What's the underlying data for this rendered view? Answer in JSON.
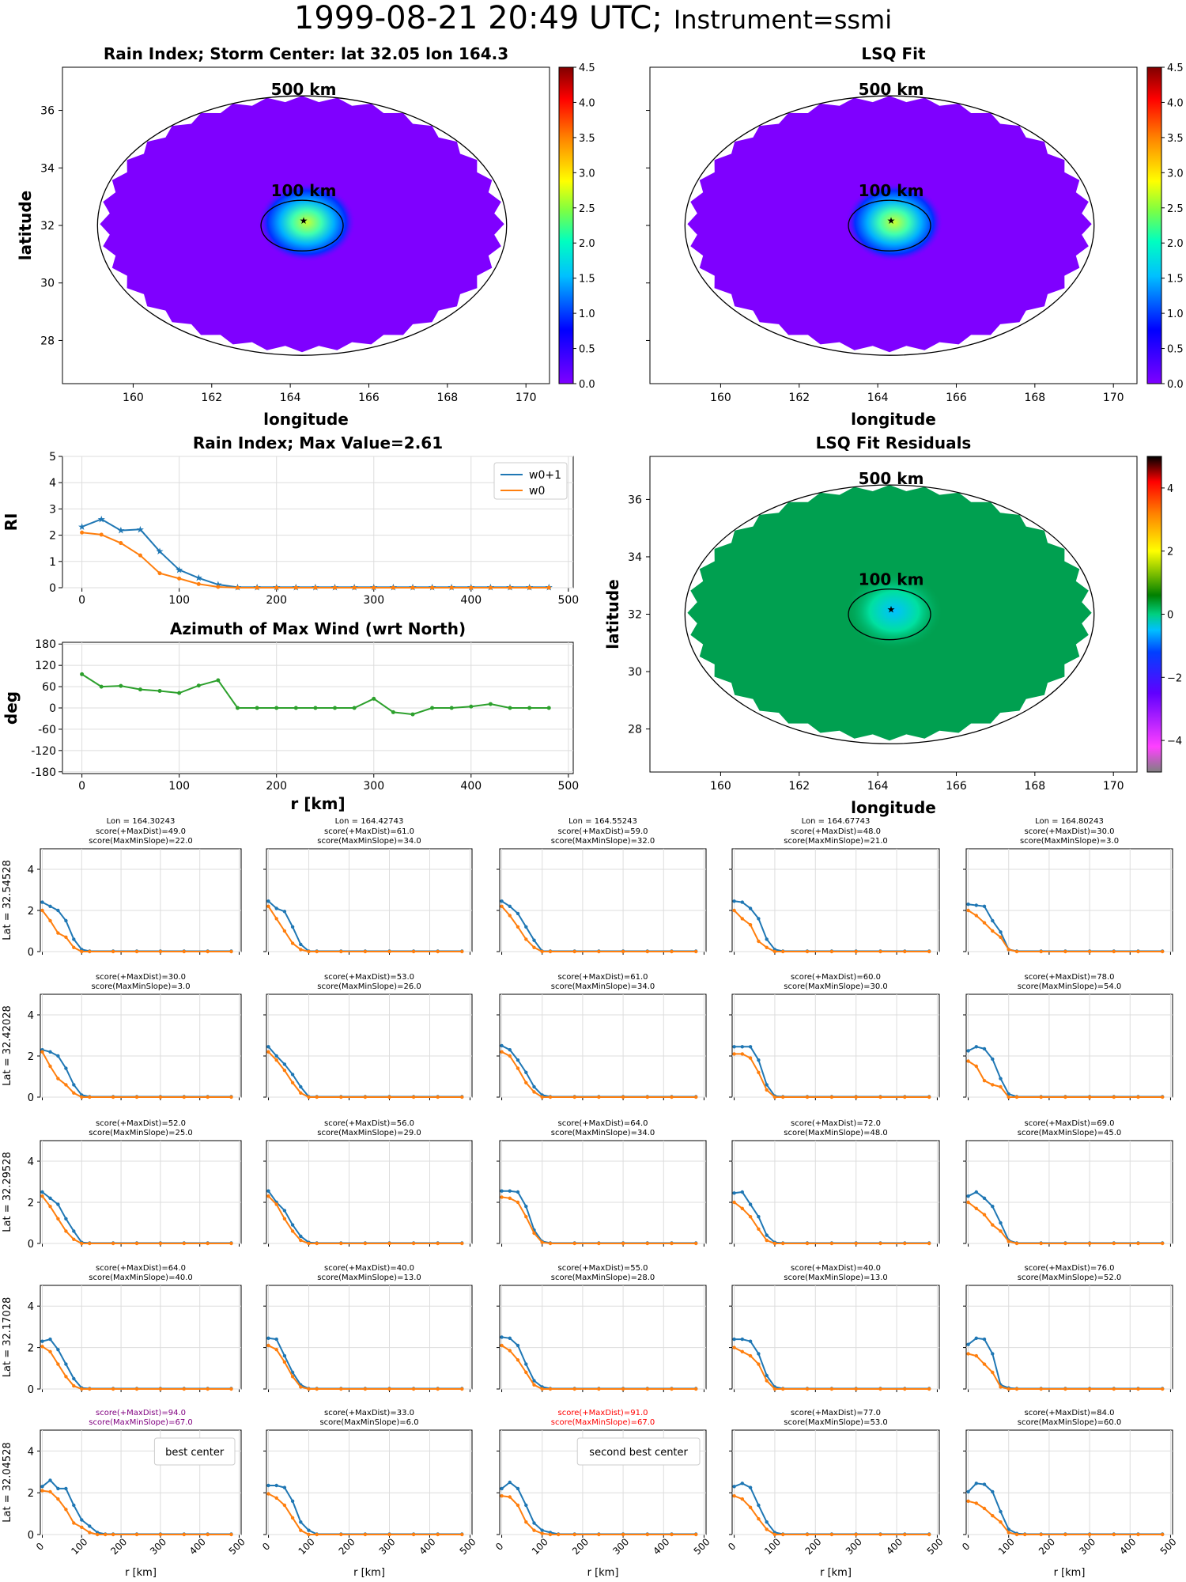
{
  "title": {
    "date": "1999-08-21 20:49 UTC;",
    "instrument": "Instrument=ssmi"
  },
  "colors": {
    "w0p1": "#1f77b4",
    "w0": "#ff7f0e",
    "azimuth": "#2ca02c",
    "purple": "#800080",
    "red": "#ff0000",
    "field_bg": "#7f00ff",
    "resid_bg": "#00a050"
  },
  "chart_data": [
    {
      "id": "rain_map",
      "type": "heatmap",
      "title": "Rain Index; Storm Center: lat 32.05 lon 164.3",
      "xlabel": "longitude",
      "ylabel": "latitude",
      "xlim": [
        158.2,
        170.6
      ],
      "ylim": [
        26.5,
        37.5
      ],
      "xticks": [
        "160",
        "162",
        "164",
        "166",
        "168",
        "170"
      ],
      "yticks": [
        "28",
        "30",
        "32",
        "34",
        "36"
      ],
      "center": [
        164.3,
        32.05
      ],
      "ring_labels": [
        "500 km",
        "100 km"
      ],
      "colorbar": {
        "min": 0.0,
        "max": 4.5,
        "ticks": [
          "0.0",
          "0.5",
          "1.0",
          "1.5",
          "2.0",
          "2.5",
          "3.0",
          "3.5",
          "4.0",
          "4.5"
        ],
        "cmap": "rainbow"
      },
      "peak": 2.61
    },
    {
      "id": "lsq_map",
      "type": "heatmap",
      "title": "LSQ Fit",
      "xlabel": "longitude",
      "ylabel": "",
      "xlim": [
        158.2,
        170.6
      ],
      "ylim": [
        26.5,
        37.5
      ],
      "xticks": [
        "160",
        "162",
        "164",
        "166",
        "168",
        "170"
      ],
      "yticks": [
        "28",
        "30",
        "32",
        "34",
        "36"
      ],
      "center": [
        164.3,
        32.05
      ],
      "ring_labels": [
        "500 km",
        "100 km"
      ],
      "colorbar": {
        "min": 0.0,
        "max": 4.5,
        "ticks": [
          "0.0",
          "0.5",
          "1.0",
          "1.5",
          "2.0",
          "2.5",
          "3.0",
          "3.5",
          "4.0",
          "4.5"
        ],
        "cmap": "rainbow"
      },
      "peak": 2.4
    },
    {
      "id": "resid_map",
      "type": "heatmap",
      "title": "LSQ Fit Residuals",
      "xlabel": "longitude",
      "ylabel": "latitude",
      "xlim": [
        158.2,
        170.6
      ],
      "ylim": [
        26.5,
        37.5
      ],
      "xticks": [
        "160",
        "162",
        "164",
        "166",
        "168",
        "170"
      ],
      "yticks": [
        "28",
        "30",
        "32",
        "34",
        "36"
      ],
      "center": [
        164.3,
        32.05
      ],
      "ring_labels": [
        "500 km",
        "100 km"
      ],
      "colorbar": {
        "min": -5,
        "max": 5,
        "ticks": [
          "−4",
          "−2",
          "0",
          "2",
          "4"
        ],
        "cmap": "diverging"
      }
    },
    {
      "id": "ri_profile",
      "type": "line",
      "title": "Rain Index; Max Value=2.61",
      "xlabel": "",
      "ylabel": "RI",
      "xlim": [
        -20,
        505
      ],
      "ylim": [
        0,
        5
      ],
      "xticks": [
        0,
        100,
        200,
        300,
        400,
        500
      ],
      "yticks": [
        0,
        1,
        2,
        3,
        4,
        5
      ],
      "x": [
        0,
        20,
        40,
        60,
        80,
        100,
        120,
        140,
        160,
        180,
        200,
        220,
        240,
        260,
        280,
        300,
        320,
        340,
        360,
        380,
        400,
        420,
        440,
        460,
        480
      ],
      "series": [
        {
          "name": "w0+1",
          "values": [
            2.32,
            2.61,
            2.18,
            2.22,
            1.38,
            0.68,
            0.37,
            0.12,
            0.02,
            0.02,
            0.02,
            0.02,
            0.02,
            0.02,
            0.02,
            0.02,
            0.02,
            0.02,
            0.02,
            0.02,
            0.02,
            0.02,
            0.02,
            0.02,
            0.02
          ]
        },
        {
          "name": "w0",
          "values": [
            2.1,
            2.02,
            1.7,
            1.23,
            0.55,
            0.35,
            0.14,
            0.03,
            0.0,
            0.0,
            0.0,
            0.0,
            0.0,
            0.0,
            0.0,
            0.0,
            0.0,
            0.0,
            0.0,
            0.0,
            0.0,
            0.0,
            0.0,
            0.0,
            0.0
          ]
        }
      ],
      "legend": "top-right"
    },
    {
      "id": "azimuth",
      "type": "line",
      "title": "Azimuth of Max Wind (wrt North)",
      "xlabel": "r [km]",
      "ylabel": "deg",
      "xlim": [
        -20,
        505
      ],
      "ylim": [
        -185,
        185
      ],
      "xticks": [
        0,
        100,
        200,
        300,
        400,
        500
      ],
      "yticks": [
        -180,
        -120,
        -60,
        0,
        60,
        120,
        180
      ],
      "x": [
        0,
        20,
        40,
        60,
        80,
        100,
        120,
        140,
        160,
        180,
        200,
        220,
        240,
        260,
        280,
        300,
        320,
        340,
        360,
        380,
        400,
        420,
        440,
        460,
        480
      ],
      "values": [
        95,
        60,
        62,
        52,
        48,
        42,
        63,
        78,
        0,
        0,
        0,
        0,
        0,
        0,
        0,
        26,
        -12,
        -18,
        0,
        0,
        4,
        11,
        0,
        0,
        0
      ]
    },
    {
      "id": "grid",
      "type": "line",
      "xlabel": "r [km]",
      "xlim": [
        -5,
        505
      ],
      "ylim": [
        0,
        5
      ],
      "xticks": [
        0,
        100,
        200,
        300,
        400,
        500
      ],
      "yticks": [
        0,
        2,
        4
      ],
      "x": [
        0,
        20,
        40,
        60,
        80,
        100,
        120,
        140,
        160,
        180,
        200,
        220,
        240,
        260,
        280,
        300,
        320,
        340,
        360,
        380,
        400,
        420,
        440,
        460,
        480
      ],
      "col_titles": [
        "Lon = 164.30243",
        "Lon = 164.42743",
        "Lon = 164.55243",
        "Lon = 164.67743",
        "Lon = 164.80243"
      ],
      "row_labels": [
        "Lat = 32.54528",
        "Lat = 32.42028",
        "Lat = 32.29528",
        "Lat = 32.17028",
        "Lat = 32.04528"
      ],
      "cells": [
        [
          {
            "s1": "score(+MaxDist)=49.0",
            "s2": "score(MaxMinSlope)=22.0",
            "a": [
              2.4,
              2.2,
              2.0,
              1.5,
              0.6,
              0.1,
              0.02
            ],
            "b": [
              2.0,
              1.5,
              0.9,
              0.7,
              0.2,
              0.0,
              0.0
            ]
          },
          {
            "s1": "score(+MaxDist)=61.0",
            "s2": "score(MaxMinSlope)=34.0",
            "a": [
              2.45,
              2.1,
              1.95,
              1.2,
              0.35,
              0.02,
              0.02
            ],
            "b": [
              2.2,
              1.6,
              1.0,
              0.4,
              0.1,
              0.0,
              0.0
            ]
          },
          {
            "s1": "score(+MaxDist)=59.0",
            "s2": "score(MaxMinSlope)=32.0",
            "a": [
              2.45,
              2.2,
              1.85,
              1.2,
              0.55,
              0.02,
              0.02
            ],
            "b": [
              2.2,
              1.75,
              1.2,
              0.6,
              0.2,
              0.0,
              0.0
            ]
          },
          {
            "s1": "score(+MaxDist)=48.0",
            "s2": "score(MaxMinSlope)=21.0",
            "a": [
              2.45,
              2.4,
              2.1,
              1.6,
              0.6,
              0.1,
              0.02
            ],
            "b": [
              2.0,
              1.6,
              1.3,
              0.5,
              0.2,
              0.0,
              0.0
            ]
          },
          {
            "s1": "score(+MaxDist)=30.0",
            "s2": "score(MaxMinSlope)=3.0",
            "a": [
              2.3,
              2.25,
              2.2,
              1.5,
              0.95,
              0.1,
              0.02
            ],
            "b": [
              2.0,
              1.75,
              1.4,
              1.0,
              0.7,
              0.1,
              0.0
            ]
          }
        ],
        [
          {
            "s1": "score(+MaxDist)=30.0",
            "s2": "score(MaxMinSlope)=3.0",
            "a": [
              2.3,
              2.2,
              2.0,
              1.4,
              0.6,
              0.1,
              0.02
            ],
            "b": [
              2.2,
              1.5,
              0.9,
              0.6,
              0.2,
              0.0,
              0.0
            ]
          },
          {
            "s1": "score(+MaxDist)=53.0",
            "s2": "score(MaxMinSlope)=26.0",
            "a": [
              2.45,
              2.0,
              1.6,
              1.1,
              0.5,
              0.02,
              0.02
            ],
            "b": [
              2.2,
              1.8,
              1.3,
              0.7,
              0.2,
              0.0,
              0.0
            ]
          },
          {
            "s1": "score(+MaxDist)=61.0",
            "s2": "score(MaxMinSlope)=34.0",
            "a": [
              2.5,
              2.3,
              1.8,
              1.2,
              0.5,
              0.1,
              0.02
            ],
            "b": [
              2.2,
              2.0,
              1.4,
              0.7,
              0.25,
              0.0,
              0.0
            ]
          },
          {
            "s1": "score(+MaxDist)=60.0",
            "s2": "score(MaxMinSlope)=30.0",
            "a": [
              2.45,
              2.45,
              2.45,
              1.8,
              0.6,
              0.05,
              0.02
            ],
            "b": [
              2.1,
              2.1,
              1.9,
              1.2,
              0.35,
              0.0,
              0.0
            ]
          },
          {
            "s1": "score(+MaxDist)=78.0",
            "s2": "score(MaxMinSlope)=54.0",
            "a": [
              2.25,
              2.45,
              2.35,
              1.85,
              0.9,
              0.15,
              0.02
            ],
            "b": [
              1.75,
              1.5,
              0.8,
              0.6,
              0.5,
              0.0,
              0.0
            ]
          }
        ],
        [
          {
            "s1": "score(+MaxDist)=52.0",
            "s2": "score(MaxMinSlope)=25.0",
            "a": [
              2.5,
              2.2,
              1.9,
              1.2,
              0.6,
              0.05,
              0.02
            ],
            "b": [
              2.3,
              1.8,
              1.2,
              0.6,
              0.2,
              0.0,
              0.0
            ]
          },
          {
            "s1": "score(+MaxDist)=56.0",
            "s2": "score(MaxMinSlope)=29.0",
            "a": [
              2.55,
              2.0,
              1.6,
              0.9,
              0.35,
              0.05,
              0.02
            ],
            "b": [
              2.3,
              1.9,
              1.2,
              0.6,
              0.15,
              0.0,
              0.0
            ]
          },
          {
            "s1": "score(+MaxDist)=64.0",
            "s2": "score(MaxMinSlope)=34.0",
            "a": [
              2.55,
              2.55,
              2.5,
              1.8,
              0.65,
              0.1,
              0.02
            ],
            "b": [
              2.25,
              2.2,
              2.0,
              1.3,
              0.5,
              0.05,
              0.0
            ]
          },
          {
            "s1": "score(+MaxDist)=72.0",
            "s2": "score(MaxMinSlope)=48.0",
            "a": [
              2.45,
              2.5,
              1.9,
              1.3,
              0.4,
              0.05,
              0.02
            ],
            "b": [
              2.0,
              1.7,
              1.3,
              0.7,
              0.15,
              0.0,
              0.0
            ]
          },
          {
            "s1": "score(+MaxDist)=69.0",
            "s2": "score(MaxMinSlope)=45.0",
            "a": [
              2.3,
              2.5,
              2.2,
              1.8,
              1.0,
              0.15,
              0.02
            ],
            "b": [
              2.0,
              1.7,
              1.4,
              0.9,
              0.6,
              0.1,
              0.0
            ]
          }
        ],
        [
          {
            "s1": "score(+MaxDist)=64.0",
            "s2": "score(MaxMinSlope)=40.0",
            "a": [
              2.3,
              2.4,
              1.9,
              1.2,
              0.5,
              0.05,
              0.02
            ],
            "b": [
              2.05,
              1.8,
              1.2,
              0.6,
              0.15,
              0.0,
              0.0
            ]
          },
          {
            "s1": "score(+MaxDist)=40.0",
            "s2": "score(MaxMinSlope)=13.0",
            "a": [
              2.45,
              2.4,
              1.6,
              0.8,
              0.2,
              0.02,
              0.02
            ],
            "b": [
              2.1,
              1.9,
              1.3,
              0.6,
              0.1,
              0.0,
              0.0
            ]
          },
          {
            "s1": "score(+MaxDist)=55.0",
            "s2": "score(MaxMinSlope)=28.0",
            "a": [
              2.5,
              2.45,
              2.1,
              1.2,
              0.4,
              0.1,
              0.02
            ],
            "b": [
              2.1,
              1.85,
              1.4,
              0.8,
              0.2,
              0.0,
              0.0
            ]
          },
          {
            "s1": "score(+MaxDist)=40.0",
            "s2": "score(MaxMinSlope)=13.0",
            "a": [
              2.4,
              2.4,
              2.3,
              1.7,
              0.65,
              0.1,
              0.02
            ],
            "b": [
              2.0,
              1.8,
              1.6,
              1.2,
              0.4,
              0.0,
              0.0
            ]
          },
          {
            "s1": "score(+MaxDist)=76.0",
            "s2": "score(MaxMinSlope)=52.0",
            "a": [
              2.15,
              2.45,
              2.4,
              1.7,
              0.2,
              0.05,
              0.02
            ],
            "b": [
              1.7,
              1.6,
              1.2,
              0.8,
              0.1,
              0.0,
              0.0
            ]
          }
        ],
        [
          {
            "s1": "score(+MaxDist)=94.0",
            "s2": "score(MaxMinSlope)=67.0",
            "a": [
              2.3,
              2.6,
              2.2,
              2.2,
              1.4,
              0.7,
              0.4,
              0.1,
              0.02
            ],
            "b": [
              2.1,
              2.05,
              1.7,
              1.2,
              0.55,
              0.35,
              0.1,
              0.0,
              0.0
            ],
            "title_color": "purple",
            "legend": "best center"
          },
          {
            "s1": "score(+MaxDist)=33.0",
            "s2": "score(MaxMinSlope)=6.0",
            "a": [
              2.35,
              2.35,
              2.25,
              1.6,
              0.6,
              0.2,
              0.02
            ],
            "b": [
              1.95,
              1.75,
              1.4,
              0.8,
              0.2,
              0.0,
              0.0
            ]
          },
          {
            "s1": "score(+MaxDist)=91.0",
            "s2": "score(MaxMinSlope)=67.0",
            "a": [
              2.2,
              2.5,
              2.2,
              1.4,
              0.55,
              0.2,
              0.1,
              0.02
            ],
            "b": [
              1.85,
              1.8,
              1.4,
              0.6,
              0.2,
              0.05,
              0.0,
              0.0
            ],
            "title_color": "red",
            "legend": "second best center"
          },
          {
            "s1": "score(+MaxDist)=77.0",
            "s2": "score(MaxMinSlope)=53.0",
            "a": [
              2.3,
              2.45,
              2.25,
              1.4,
              0.6,
              0.1,
              0.02
            ],
            "b": [
              1.85,
              1.7,
              1.3,
              0.75,
              0.25,
              0.0,
              0.0
            ]
          },
          {
            "s1": "score(+MaxDist)=84.0",
            "s2": "score(MaxMinSlope)=60.0",
            "a": [
              2.05,
              2.45,
              2.4,
              2.05,
              1.1,
              0.25,
              0.05,
              0.02
            ],
            "b": [
              1.6,
              1.5,
              1.25,
              0.9,
              0.6,
              0.1,
              0.0,
              0.0
            ]
          }
        ]
      ]
    }
  ]
}
